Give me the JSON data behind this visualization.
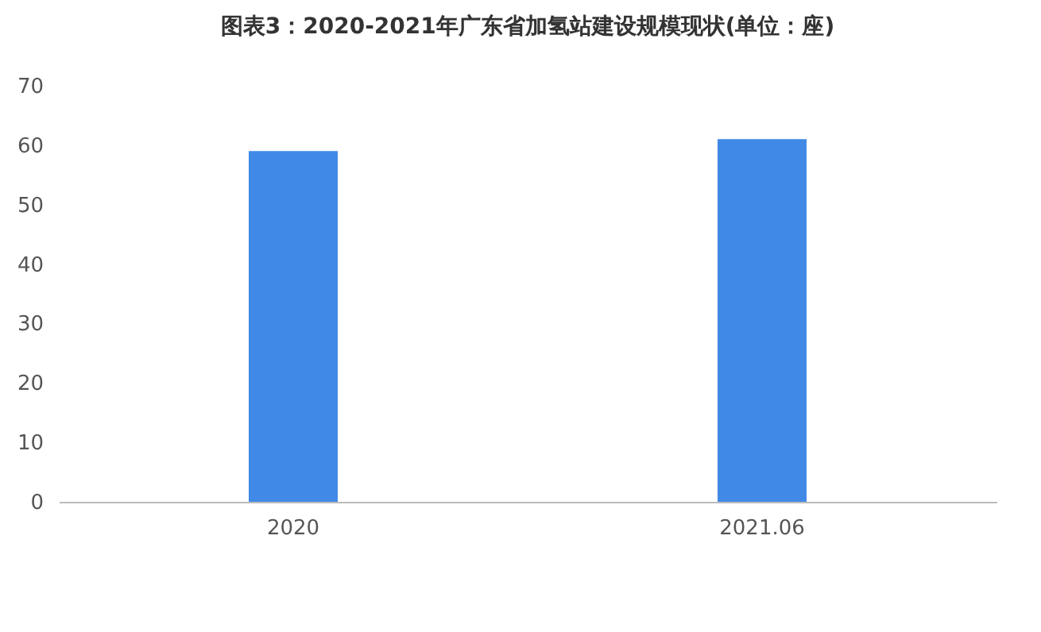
{
  "chart_data": {
    "type": "bar",
    "title": "图表3：2020-2021年广东省加氢站建设规模现状(单位：座)",
    "categories": [
      "2020",
      "2021.06"
    ],
    "values": [
      59,
      61
    ],
    "color": "#4189e6",
    "ylim": [
      0,
      70
    ],
    "yticks": [
      0,
      10,
      20,
      30,
      40,
      50,
      60,
      70
    ],
    "grid": false
  }
}
